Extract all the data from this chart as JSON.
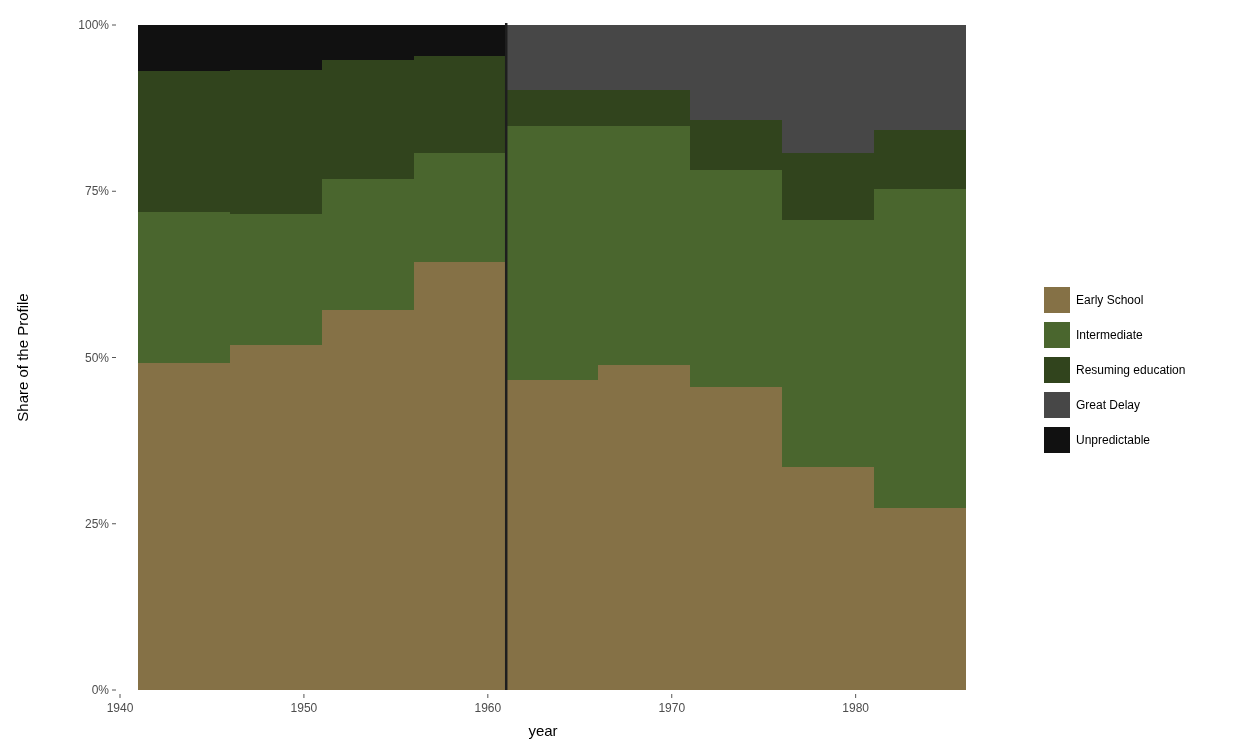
{
  "chart_data": {
    "type": "bar",
    "stacked": true,
    "xlabel": "year",
    "ylabel": "Share of the Profile",
    "x": [
      1943.5,
      1948.5,
      1953.5,
      1958.5,
      1963.5,
      1968.5,
      1973.5,
      1978.5,
      1983.5
    ],
    "series": [
      {
        "name": "Early School",
        "color": "#857146",
        "values": [
          49.2,
          51.9,
          57.1,
          64.4,
          46.6,
          48.9,
          45.6,
          33.5,
          27.3
        ]
      },
      {
        "name": "Intermediate",
        "color": "#4a662e",
        "values": [
          22.7,
          19.7,
          19.8,
          16.3,
          38.2,
          35.9,
          32.6,
          37.2,
          48.1
        ]
      },
      {
        "name": "Resuming education",
        "color": "#31441d",
        "values": [
          21.2,
          21.6,
          17.8,
          14.6,
          5.4,
          5.4,
          7.5,
          10.0,
          8.8
        ]
      },
      {
        "name": "Great Delay",
        "color": "#474747",
        "values": [
          0,
          0,
          0,
          0,
          9.8,
          9.8,
          14.3,
          19.3,
          15.8
        ]
      },
      {
        "name": "Unpredictable",
        "color": "#111111",
        "values": [
          6.9,
          6.8,
          5.3,
          4.7,
          0,
          0,
          0,
          0,
          0
        ]
      }
    ],
    "xlim": [
      1940,
      1986
    ],
    "xticks": [
      1940,
      1950,
      1960,
      1970,
      1980
    ],
    "ylim": [
      0,
      100
    ],
    "yticks": [
      {
        "value": 0,
        "label": "0%"
      },
      {
        "value": 25,
        "label": "25%"
      },
      {
        "value": 50,
        "label": "50%"
      },
      {
        "value": 75,
        "label": "75%"
      },
      {
        "value": 100,
        "label": "100%"
      }
    ],
    "ref_lines": [
      {
        "axis": "x",
        "value": 1961,
        "color": "#1e1e1e"
      }
    ],
    "legend": "right",
    "grid": false
  }
}
